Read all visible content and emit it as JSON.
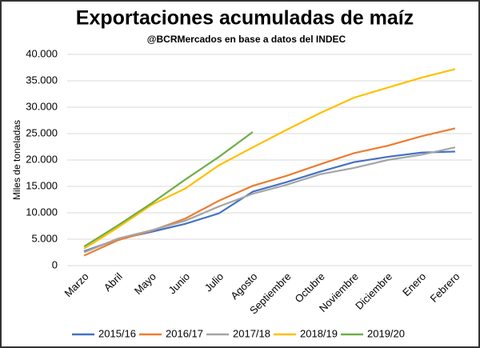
{
  "chart_data": {
    "type": "line",
    "title": "Exportaciones acumuladas de maíz",
    "subtitle": "@BCRMercados  en base a datos del INDEC",
    "y_label": "Miles de toneladas",
    "categories": [
      "Marzo",
      "Abril",
      "Mayo",
      "Junio",
      "Julio",
      "Agosto",
      "Septiembre",
      "Octubre",
      "Noviembre",
      "Diciembre",
      "Enero",
      "Febrero"
    ],
    "series": [
      {
        "name": "2015/16",
        "color": "#4472c4",
        "values": [
          2700,
          5000,
          6400,
          7900,
          9900,
          14000,
          15800,
          17800,
          19600,
          20600,
          21400,
          21600
        ]
      },
      {
        "name": "2016/17",
        "color": "#ed7d31",
        "values": [
          1900,
          4800,
          6600,
          8900,
          12300,
          15100,
          17000,
          19200,
          21300,
          22700,
          24500,
          26000
        ]
      },
      {
        "name": "2017/18",
        "color": "#a5a5a5",
        "values": [
          2500,
          5100,
          6700,
          8500,
          11200,
          13600,
          15300,
          17300,
          18500,
          20000,
          21000,
          22400
        ]
      },
      {
        "name": "2018/19",
        "color": "#ffc000",
        "values": [
          3200,
          7200,
          11500,
          14600,
          19000,
          22400,
          25700,
          28900,
          31800,
          33700,
          35600,
          37200
        ]
      },
      {
        "name": "2019/20",
        "color": "#70ad47",
        "values": [
          3600,
          7600,
          11800,
          16300,
          20600,
          25300,
          null,
          null,
          null,
          null,
          null,
          null
        ]
      }
    ],
    "ylim": [
      0,
      40000
    ],
    "yticks": [
      0,
      {
        "value": 5000,
        "label": "5.000"
      },
      {
        "value": 10000,
        "label": "10.000"
      },
      {
        "value": 15000,
        "label": "15.000"
      },
      {
        "value": 20000,
        "label": "20.000"
      },
      {
        "value": 25000,
        "label": "25.000"
      },
      {
        "value": 30000,
        "label": "30.000"
      },
      {
        "value": 35000,
        "label": "35.000"
      },
      {
        "value": 40000,
        "label": "40.000"
      }
    ],
    "grid": true
  }
}
